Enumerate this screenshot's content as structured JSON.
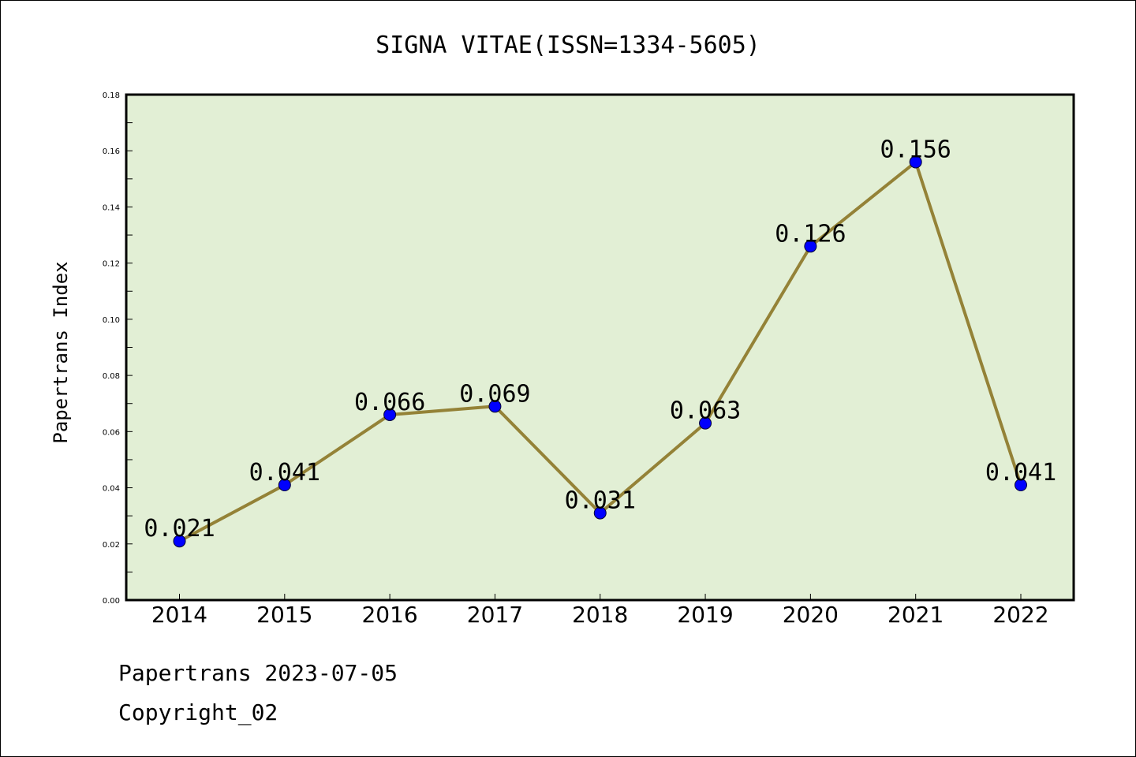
{
  "chart_data": {
    "type": "line",
    "title": "SIGNA VITAE(ISSN=1334-5605)",
    "ylabel": "Papertrans Index",
    "xlabel": "",
    "categories": [
      "2014",
      "2015",
      "2016",
      "2017",
      "2018",
      "2019",
      "2020",
      "2021",
      "2022"
    ],
    "values": [
      0.021,
      0.041,
      0.066,
      0.069,
      0.031,
      0.063,
      0.126,
      0.156,
      0.041
    ],
    "data_labels": [
      "0.021",
      "0.041",
      "0.066",
      "0.069",
      "0.031",
      "0.063",
      "0.126",
      "0.156",
      "0.041"
    ],
    "ylim": [
      0,
      0.18
    ],
    "yticks": [
      "0.00",
      "0.02",
      "0.04",
      "0.06",
      "0.08",
      "0.10",
      "0.12",
      "0.14",
      "0.16",
      "0.18"
    ],
    "grid": false,
    "colors": {
      "plot_background": "#e2efd5",
      "line": "#948237",
      "marker": "#0000ff"
    }
  },
  "footer": {
    "line1": "Papertrans 2023-07-05",
    "line2": "Copyright_02"
  }
}
